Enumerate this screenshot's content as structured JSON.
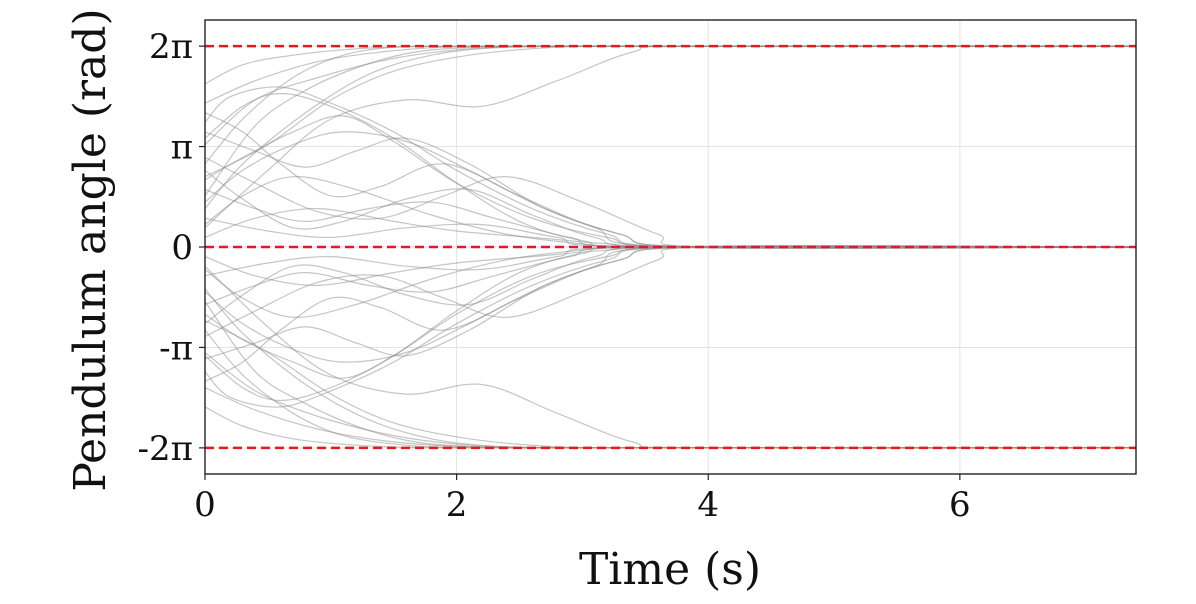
{
  "chart_data": {
    "type": "line",
    "xlabel": "Time (s)",
    "ylabel": "Pendulum angle (rad)",
    "xlim": [
      0,
      7.4
    ],
    "ylim": [
      -7.1,
      7.1
    ],
    "grid": true,
    "x_ticks": [
      {
        "value": 0,
        "label": "0"
      },
      {
        "value": 2,
        "label": "2"
      },
      {
        "value": 4,
        "label": "4"
      },
      {
        "value": 6,
        "label": "6"
      }
    ],
    "y_ticks": [
      {
        "value": 6.2832,
        "label": "2π"
      },
      {
        "value": 3.1416,
        "label": "π"
      },
      {
        "value": 0,
        "label": "0"
      },
      {
        "value": -3.1416,
        "label": "-π"
      },
      {
        "value": -6.2832,
        "label": "-2π"
      }
    ],
    "reference_lines": {
      "values": [
        6.2832,
        0,
        -6.2832
      ],
      "color": "#e41a1c",
      "style": "dashed"
    },
    "trajectory_color": "#8c8c8c",
    "trajectories": [
      {
        "x": [
          0,
          0.3,
          0.7,
          1.1,
          1.5,
          1.9,
          2.4,
          3.0,
          4.0,
          7.4
        ],
        "y": [
          2.6,
          4.0,
          5.3,
          6.0,
          6.25,
          6.28,
          6.28,
          6.28,
          6.28,
          6.28
        ]
      },
      {
        "x": [
          0,
          0.4,
          0.9,
          1.4,
          1.9,
          2.5,
          3.2,
          4.0,
          7.4
        ],
        "y": [
          4.5,
          5.2,
          5.8,
          6.1,
          6.25,
          6.28,
          6.28,
          6.28,
          6.28
        ]
      },
      {
        "x": [
          0,
          0.3,
          0.8,
          1.3,
          1.8,
          2.3,
          2.9,
          3.6,
          4.2,
          7.4
        ],
        "y": [
          1.2,
          2.6,
          4.2,
          5.4,
          6.0,
          6.23,
          6.28,
          6.28,
          6.28,
          6.28
        ]
      },
      {
        "x": [
          0,
          0.4,
          0.9,
          1.5,
          2.1,
          2.7,
          3.3,
          4.0,
          7.4
        ],
        "y": [
          3.2,
          4.6,
          5.3,
          5.9,
          6.2,
          6.28,
          6.28,
          6.28,
          6.28
        ]
      },
      {
        "x": [
          0,
          0.5,
          1.0,
          1.6,
          2.2,
          2.8,
          3.4,
          3.9,
          7.4
        ],
        "y": [
          0.6,
          2.4,
          4.0,
          4.6,
          4.4,
          5.2,
          6.1,
          6.28,
          6.28
        ]
      },
      {
        "x": [
          0,
          0.3,
          0.7,
          1.2,
          1.7,
          2.3,
          3.0,
          4.0,
          7.4
        ],
        "y": [
          5.1,
          5.7,
          6.0,
          6.2,
          6.27,
          6.28,
          6.28,
          6.28,
          6.28
        ]
      },
      {
        "x": [
          0,
          0.4,
          0.8,
          1.2,
          1.6,
          2.0,
          2.6,
          3.3,
          4.0,
          7.4
        ],
        "y": [
          1.6,
          3.8,
          4.9,
          5.6,
          6.05,
          6.22,
          6.28,
          6.28,
          6.28,
          6.28
        ]
      },
      {
        "x": [
          0,
          0.5,
          1.0,
          1.5,
          2.1,
          2.8,
          3.5,
          4.0,
          7.4
        ],
        "y": [
          2.2,
          3.2,
          4.6,
          5.5,
          6.0,
          6.25,
          6.28,
          6.28,
          6.28
        ]
      },
      {
        "x": [
          0,
          0.3,
          0.7,
          1.1,
          1.5,
          2.0,
          2.6,
          3.2,
          3.8,
          7.4
        ],
        "y": [
          2.1,
          2.8,
          3.6,
          4.1,
          3.3,
          2.0,
          0.9,
          0.3,
          0.0,
          0.0
        ]
      },
      {
        "x": [
          0,
          0.4,
          0.8,
          1.2,
          1.6,
          2.1,
          2.7,
          3.3,
          3.9,
          7.4
        ],
        "y": [
          3.6,
          3.0,
          2.5,
          3.0,
          3.4,
          2.6,
          1.2,
          0.4,
          0.0,
          0.0
        ]
      },
      {
        "x": [
          0,
          0.3,
          0.6,
          1.0,
          1.4,
          1.9,
          2.5,
          3.1,
          3.7,
          7.4
        ],
        "y": [
          4.2,
          3.6,
          2.6,
          1.6,
          1.9,
          2.6,
          1.6,
          0.6,
          0.0,
          0.0
        ]
      },
      {
        "x": [
          0,
          0.3,
          0.7,
          1.1,
          1.6,
          2.1,
          2.7,
          3.3,
          3.9,
          7.4
        ],
        "y": [
          1.4,
          2.4,
          3.2,
          3.6,
          3.3,
          2.4,
          1.2,
          0.4,
          0.0,
          0.0
        ]
      },
      {
        "x": [
          0,
          0.4,
          0.9,
          1.4,
          1.9,
          2.4,
          3.0,
          3.6,
          4.0,
          7.4
        ],
        "y": [
          2.8,
          2.0,
          1.1,
          0.9,
          1.6,
          2.2,
          1.4,
          0.4,
          0.0,
          0.0
        ]
      },
      {
        "x": [
          0,
          0.3,
          0.6,
          1.0,
          1.5,
          2.0,
          2.5,
          3.0,
          3.6,
          7.4
        ],
        "y": [
          3.4,
          4.4,
          4.8,
          4.4,
          3.4,
          2.0,
          0.8,
          0.2,
          0.0,
          0.0
        ]
      },
      {
        "x": [
          0,
          0.3,
          0.7,
          1.2,
          1.8,
          2.4,
          3.0,
          3.6,
          7.4
        ],
        "y": [
          0.7,
          1.6,
          2.2,
          1.8,
          1.0,
          0.4,
          0.1,
          0.0,
          0.0
        ]
      },
      {
        "x": [
          0,
          0.4,
          0.8,
          1.3,
          1.8,
          2.3,
          2.9,
          3.5,
          7.4
        ],
        "y": [
          1.8,
          1.2,
          0.8,
          1.2,
          1.4,
          0.9,
          0.3,
          0.0,
          0.0
        ]
      },
      {
        "x": [
          0,
          0.3,
          0.7,
          1.1,
          1.6,
          2.1,
          2.6,
          3.1,
          3.7,
          7.4
        ],
        "y": [
          2.4,
          1.5,
          0.6,
          0.8,
          1.5,
          1.8,
          1.0,
          0.3,
          0.0,
          0.0
        ]
      },
      {
        "x": [
          0,
          0.2,
          0.6,
          1.0,
          1.5,
          2.0,
          2.6,
          3.2,
          3.8,
          7.4
        ],
        "y": [
          3.9,
          4.7,
          5.0,
          4.5,
          3.6,
          2.4,
          1.2,
          0.4,
          0.0,
          0.0
        ]
      },
      {
        "x": [
          0,
          0.4,
          0.9,
          1.5,
          2.0,
          2.6,
          3.2,
          3.8,
          7.4
        ],
        "y": [
          0.3,
          0.9,
          1.2,
          0.8,
          0.5,
          0.3,
          0.1,
          0.0,
          0.0
        ]
      },
      {
        "x": [
          0,
          0.5,
          1.0,
          1.6,
          2.2,
          2.8,
          3.4,
          7.4
        ],
        "y": [
          0.9,
          0.5,
          0.3,
          0.6,
          0.7,
          0.3,
          0.0,
          0.0
        ]
      },
      {
        "x": [
          0,
          0.3,
          0.7,
          1.1,
          1.6,
          2.1,
          2.7,
          3.3,
          3.8,
          7.4
        ],
        "y": [
          -2.6,
          -4.0,
          -5.2,
          -5.9,
          -6.2,
          -6.28,
          -6.28,
          -6.28,
          -6.28,
          -6.28
        ]
      },
      {
        "x": [
          0,
          0.4,
          0.9,
          1.4,
          1.9,
          2.5,
          3.2,
          4.0,
          7.4
        ],
        "y": [
          -4.4,
          -5.1,
          -5.7,
          -6.05,
          -6.22,
          -6.28,
          -6.28,
          -6.28,
          -6.28
        ]
      },
      {
        "x": [
          0,
          0.3,
          0.8,
          1.3,
          1.8,
          2.3,
          2.9,
          3.6,
          4.2,
          7.4
        ],
        "y": [
          -1.3,
          -2.7,
          -4.3,
          -5.4,
          -6.0,
          -6.23,
          -6.28,
          -6.28,
          -6.28,
          -6.28
        ]
      },
      {
        "x": [
          0,
          0.4,
          0.9,
          1.5,
          2.1,
          2.7,
          3.3,
          4.0,
          7.4
        ],
        "y": [
          -3.3,
          -4.5,
          -5.3,
          -5.9,
          -6.2,
          -6.28,
          -6.28,
          -6.28,
          -6.28
        ]
      },
      {
        "x": [
          0,
          0.5,
          1.0,
          1.6,
          2.2,
          2.8,
          3.4,
          3.9,
          7.4
        ],
        "y": [
          -0.6,
          -2.5,
          -4.0,
          -4.6,
          -4.3,
          -5.2,
          -6.1,
          -6.28,
          -6.28
        ]
      },
      {
        "x": [
          0,
          0.3,
          0.7,
          1.2,
          1.7,
          2.3,
          3.0,
          4.0,
          7.4
        ],
        "y": [
          -5.0,
          -5.6,
          -6.0,
          -6.2,
          -6.27,
          -6.28,
          -6.28,
          -6.28,
          -6.28
        ]
      },
      {
        "x": [
          0,
          0.4,
          0.8,
          1.2,
          1.6,
          2.0,
          2.6,
          3.3,
          4.0,
          7.4
        ],
        "y": [
          -1.7,
          -3.9,
          -4.9,
          -5.6,
          -6.05,
          -6.22,
          -6.28,
          -6.28,
          -6.28,
          -6.28
        ]
      },
      {
        "x": [
          0,
          0.5,
          1.0,
          1.5,
          2.1,
          2.8,
          3.5,
          4.0,
          7.4
        ],
        "y": [
          -2.3,
          -3.3,
          -4.6,
          -5.5,
          -6.0,
          -6.25,
          -6.28,
          -6.28,
          -6.28
        ]
      },
      {
        "x": [
          0,
          0.3,
          0.7,
          1.1,
          1.5,
          2.0,
          2.6,
          3.2,
          3.8,
          7.4
        ],
        "y": [
          -2.1,
          -2.9,
          -3.6,
          -4.1,
          -3.4,
          -2.1,
          -0.9,
          -0.3,
          0.0,
          0.0
        ]
      },
      {
        "x": [
          0,
          0.4,
          0.8,
          1.2,
          1.6,
          2.1,
          2.7,
          3.3,
          3.9,
          7.4
        ],
        "y": [
          -3.5,
          -3.0,
          -2.5,
          -3.0,
          -3.4,
          -2.6,
          -1.2,
          -0.4,
          0.0,
          0.0
        ]
      },
      {
        "x": [
          0,
          0.3,
          0.6,
          1.0,
          1.4,
          1.9,
          2.5,
          3.1,
          3.7,
          7.4
        ],
        "y": [
          -4.2,
          -3.6,
          -2.6,
          -1.6,
          -1.9,
          -2.6,
          -1.6,
          -0.6,
          0.0,
          0.0
        ]
      },
      {
        "x": [
          0,
          0.3,
          0.7,
          1.1,
          1.6,
          2.1,
          2.7,
          3.3,
          3.9,
          7.4
        ],
        "y": [
          -1.4,
          -2.4,
          -3.2,
          -3.6,
          -3.3,
          -2.4,
          -1.2,
          -0.4,
          0.0,
          0.0
        ]
      },
      {
        "x": [
          0,
          0.4,
          0.9,
          1.4,
          1.9,
          2.4,
          3.0,
          3.6,
          4.0,
          7.4
        ],
        "y": [
          -2.8,
          -2.0,
          -1.1,
          -0.9,
          -1.6,
          -2.2,
          -1.4,
          -0.4,
          0.0,
          0.0
        ]
      },
      {
        "x": [
          0,
          0.3,
          0.6,
          1.0,
          1.5,
          2.0,
          2.5,
          3.0,
          3.6,
          7.4
        ],
        "y": [
          -3.4,
          -4.4,
          -4.8,
          -4.4,
          -3.4,
          -2.0,
          -0.8,
          -0.2,
          0.0,
          0.0
        ]
      },
      {
        "x": [
          0,
          0.3,
          0.7,
          1.2,
          1.8,
          2.4,
          3.0,
          3.6,
          7.4
        ],
        "y": [
          -0.7,
          -1.6,
          -2.2,
          -1.8,
          -1.0,
          -0.4,
          -0.1,
          0.0,
          0.0
        ]
      },
      {
        "x": [
          0,
          0.4,
          0.8,
          1.3,
          1.8,
          2.3,
          2.9,
          3.5,
          7.4
        ],
        "y": [
          -1.8,
          -1.2,
          -0.8,
          -1.2,
          -1.4,
          -0.9,
          -0.3,
          0.0,
          0.0
        ]
      },
      {
        "x": [
          0,
          0.3,
          0.7,
          1.1,
          1.6,
          2.1,
          2.6,
          3.1,
          3.7,
          7.4
        ],
        "y": [
          -2.4,
          -1.5,
          -0.6,
          -0.8,
          -1.5,
          -1.8,
          -1.0,
          -0.3,
          0.0,
          0.0
        ]
      },
      {
        "x": [
          0,
          0.2,
          0.6,
          1.0,
          1.5,
          2.0,
          2.6,
          3.2,
          3.8,
          7.4
        ],
        "y": [
          -3.9,
          -4.7,
          -5.0,
          -4.5,
          -3.6,
          -2.4,
          -1.2,
          -0.4,
          0.0,
          0.0
        ]
      },
      {
        "x": [
          0,
          0.4,
          0.9,
          1.5,
          2.0,
          2.6,
          3.2,
          3.8,
          7.4
        ],
        "y": [
          -0.3,
          -0.9,
          -1.2,
          -0.8,
          -0.5,
          -0.3,
          -0.1,
          0.0,
          0.0
        ]
      },
      {
        "x": [
          0,
          0.5,
          1.0,
          1.6,
          2.2,
          2.8,
          3.4,
          7.4
        ],
        "y": [
          -0.9,
          -0.5,
          -0.3,
          -0.6,
          -0.7,
          -0.3,
          0.0,
          0.0
        ]
      }
    ]
  }
}
